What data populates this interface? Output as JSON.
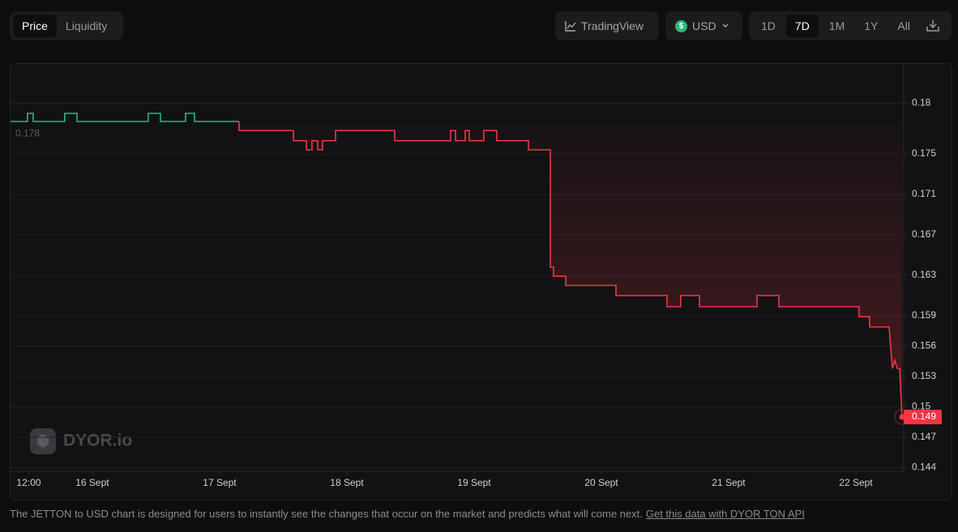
{
  "tabs": [
    "Price",
    "Liquidity"
  ],
  "buttons": {
    "tradingview": "TradingView",
    "currency_symbol": "$",
    "currency": "USD"
  },
  "timeframes": [
    "1D",
    "7D",
    "1M",
    "1Y",
    "All"
  ],
  "watermark": "DYOR.io",
  "footer": {
    "text": "The JETTON to USD chart is designed for users to instantly see the changes that occur on the market and predicts what will come next.",
    "link": "Get this data with DYOR TON API"
  },
  "chart_data": {
    "type": "line",
    "xlim": [
      15.357,
      22.376
    ],
    "xticks": [
      {
        "value": 15.5,
        "label": "12:00"
      },
      {
        "value": 16,
        "label": "16 Sept"
      },
      {
        "value": 17,
        "label": "17 Sept"
      },
      {
        "value": 18,
        "label": "18 Sept"
      },
      {
        "value": 19,
        "label": "19 Sept"
      },
      {
        "value": 20,
        "label": "20 Sept"
      },
      {
        "value": 21,
        "label": "21 Sept"
      },
      {
        "value": 22,
        "label": "22 Sept"
      }
    ],
    "ylim": [
      0.1438,
      0.1838
    ],
    "yticks": [
      0.18,
      0.175,
      0.171,
      0.167,
      0.163,
      0.159,
      0.156,
      0.153,
      0.15,
      0.147,
      0.144
    ],
    "grid": true,
    "baseline": 0.178,
    "last_price": 0.149,
    "series": [
      {
        "color": "#2fb67c",
        "x": [
          15.357,
          15.49,
          15.49,
          15.535,
          15.535,
          15.783,
          15.783,
          15.879,
          15.879,
          16.439,
          16.439,
          16.535,
          16.535,
          16.732,
          16.732,
          16.803,
          16.803,
          17.153
        ],
        "values": [
          0.1782,
          0.1782,
          0.179,
          0.179,
          0.1782,
          0.1782,
          0.179,
          0.179,
          0.1782,
          0.1782,
          0.179,
          0.179,
          0.1782,
          0.1782,
          0.179,
          0.179,
          0.1782,
          0.1782
        ]
      },
      {
        "color": "#f23645",
        "fill": true,
        "x": [
          17.153,
          17.153,
          17.58,
          17.58,
          17.682,
          17.682,
          17.726,
          17.726,
          17.771,
          17.771,
          17.809,
          17.809,
          17.911,
          17.911,
          18.376,
          18.376,
          18.815,
          18.815,
          18.854,
          18.854,
          18.93,
          18.93,
          18.962,
          18.962,
          19.076,
          19.076,
          19.178,
          19.178,
          19.427,
          19.427,
          19.599,
          19.599,
          19.624,
          19.624,
          19.72,
          19.72,
          20.115,
          20.115,
          20.516,
          20.516,
          20.624,
          20.624,
          20.771,
          20.771,
          21.223,
          21.223,
          21.395,
          21.395,
          22.025,
          22.025,
          22.108,
          22.108,
          22.261,
          22.287,
          22.306,
          22.325,
          22.344,
          22.363
        ],
        "values": [
          0.1782,
          0.1773,
          0.1773,
          0.1763,
          0.1763,
          0.1754,
          0.1754,
          0.1763,
          0.1763,
          0.1754,
          0.1754,
          0.1763,
          0.1763,
          0.1773,
          0.1773,
          0.1763,
          0.1763,
          0.1773,
          0.1773,
          0.1763,
          0.1763,
          0.1773,
          0.1773,
          0.1763,
          0.1763,
          0.1773,
          0.1773,
          0.1763,
          0.1763,
          0.1754,
          0.1754,
          0.1638,
          0.1638,
          0.1629,
          0.1629,
          0.162,
          0.162,
          0.161,
          0.161,
          0.1599,
          0.1599,
          0.161,
          0.161,
          0.1599,
          0.1599,
          0.161,
          0.161,
          0.1599,
          0.1599,
          0.1589,
          0.1589,
          0.1579,
          0.1579,
          0.1538,
          0.1546,
          0.1538,
          0.1538,
          0.149
        ]
      }
    ]
  }
}
